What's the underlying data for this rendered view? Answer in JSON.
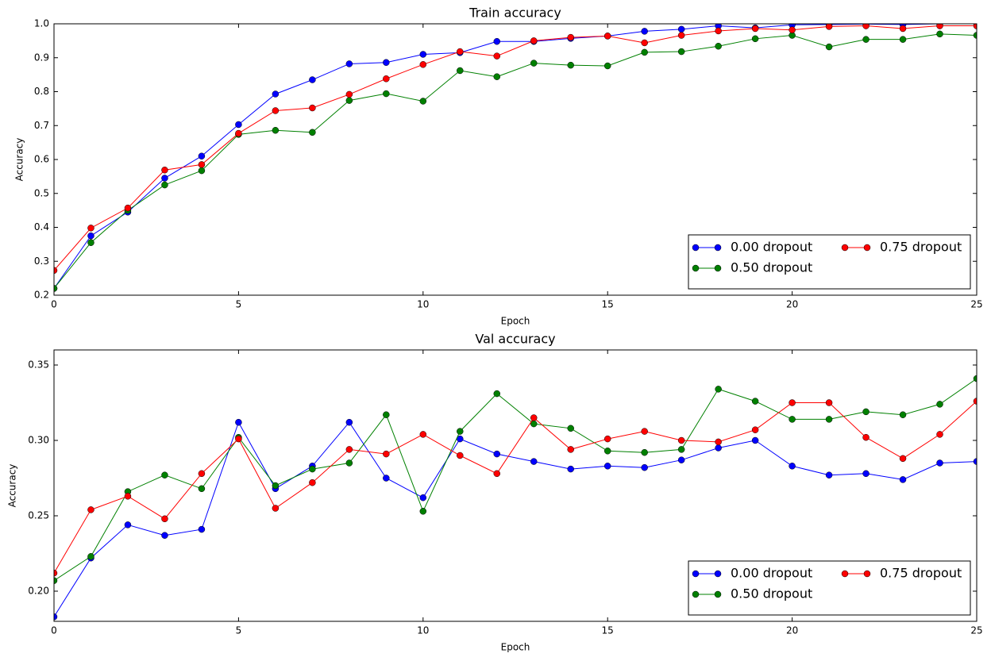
{
  "chart_data": [
    {
      "type": "line",
      "title": "Train accuracy",
      "xlabel": "Epoch",
      "ylabel": "Accuracy",
      "x": [
        0,
        1,
        2,
        3,
        4,
        5,
        6,
        7,
        8,
        9,
        10,
        11,
        12,
        13,
        14,
        15,
        16,
        17,
        18,
        19,
        20,
        21,
        22,
        23,
        24,
        25
      ],
      "xlim": [
        0,
        25
      ],
      "ylim": [
        0.2,
        1
      ],
      "xticks": [
        0,
        5,
        10,
        15,
        20,
        25
      ],
      "yticks": [
        0.2,
        0.3,
        0.4,
        0.5,
        0.6,
        0.7,
        0.8,
        0.9,
        {
          "value": 1,
          "label": "1.0"
        }
      ],
      "legend": "lower right",
      "series": [
        {
          "name": "0.00 dropout",
          "color": "#0000ff",
          "values": [
            0.22,
            0.375,
            0.445,
            0.545,
            0.61,
            0.703,
            0.793,
            0.835,
            0.882,
            0.886,
            0.91,
            0.915,
            0.948,
            0.948,
            0.957,
            0.964,
            0.978,
            0.984,
            0.994,
            0.988,
            0.997,
            0.998,
            0.999,
            0.998,
            1.0,
            1.0
          ]
        },
        {
          "name": "0.50 dropout",
          "color": "#008000",
          "values": [
            0.22,
            0.355,
            0.45,
            0.525,
            0.567,
            0.674,
            0.686,
            0.68,
            0.774,
            0.794,
            0.772,
            0.862,
            0.844,
            0.884,
            0.878,
            0.876,
            0.916,
            0.918,
            0.934,
            0.956,
            0.966,
            0.932,
            0.954,
            0.954,
            0.97,
            0.966
          ]
        },
        {
          "name": "0.75 dropout",
          "color": "#ff0000",
          "values": [
            0.273,
            0.398,
            0.457,
            0.569,
            0.585,
            0.677,
            0.744,
            0.752,
            0.792,
            0.838,
            0.88,
            0.918,
            0.905,
            0.95,
            0.96,
            0.964,
            0.944,
            0.966,
            0.979,
            0.986,
            0.982,
            0.992,
            0.994,
            0.986,
            0.994,
            0.994
          ]
        }
      ]
    },
    {
      "type": "line",
      "title": "Val accuracy",
      "xlabel": "Epoch",
      "ylabel": "Accuracy",
      "x": [
        0,
        1,
        2,
        3,
        4,
        5,
        6,
        7,
        8,
        9,
        10,
        11,
        12,
        13,
        14,
        15,
        16,
        17,
        18,
        19,
        20,
        21,
        22,
        23,
        24,
        25
      ],
      "xlim": [
        0,
        25
      ],
      "ylim": [
        0.18,
        0.36
      ],
      "xticks": [
        0,
        5,
        10,
        15,
        20,
        25
      ],
      "yticks": [
        {
          "value": 0.2,
          "label": "0.20"
        },
        0.25,
        {
          "value": 0.3,
          "label": "0.30"
        },
        0.35
      ],
      "legend": "lower right",
      "series": [
        {
          "name": "0.00 dropout",
          "color": "#0000ff",
          "values": [
            0.183,
            0.222,
            0.244,
            0.237,
            0.241,
            0.312,
            0.268,
            0.283,
            0.312,
            0.275,
            0.262,
            0.301,
            0.291,
            0.286,
            0.281,
            0.283,
            0.282,
            0.287,
            0.295,
            0.3,
            0.283,
            0.277,
            0.278,
            0.274,
            0.285,
            0.286
          ]
        },
        {
          "name": "0.50 dropout",
          "color": "#008000",
          "values": [
            0.207,
            0.223,
            0.266,
            0.277,
            0.268,
            0.302,
            0.27,
            0.281,
            0.285,
            0.317,
            0.253,
            0.306,
            0.331,
            0.311,
            0.308,
            0.293,
            0.292,
            0.294,
            0.334,
            0.326,
            0.314,
            0.314,
            0.319,
            0.317,
            0.324,
            0.341
          ]
        },
        {
          "name": "0.75 dropout",
          "color": "#ff0000",
          "values": [
            0.212,
            0.254,
            0.263,
            0.248,
            0.278,
            0.301,
            0.255,
            0.272,
            0.294,
            0.291,
            0.304,
            0.29,
            0.278,
            0.315,
            0.294,
            0.301,
            0.306,
            0.3,
            0.299,
            0.307,
            0.325,
            0.325,
            0.302,
            0.288,
            0.304,
            0.326
          ]
        }
      ]
    }
  ]
}
